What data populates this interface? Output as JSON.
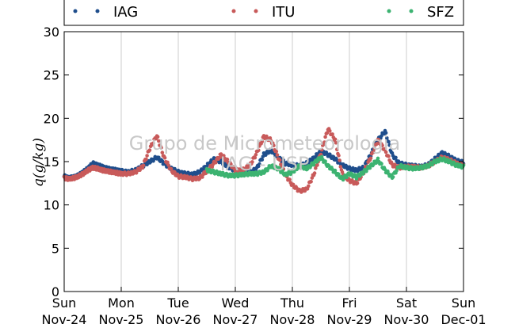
{
  "chart_data": {
    "type": "scatter",
    "ylabel": "q(g/kg)",
    "ylim": [
      0,
      30
    ],
    "yticks": [
      0,
      5,
      10,
      15,
      20,
      25,
      30
    ],
    "xlim": [
      "2013-11-24",
      "2013-12-01"
    ],
    "xticks": [
      {
        "day": "Sun",
        "date": "Nov-24"
      },
      {
        "day": "Mon",
        "date": "Nov-25"
      },
      {
        "day": "Tue",
        "date": "Nov-26"
      },
      {
        "day": "Wed",
        "date": "Nov-27"
      },
      {
        "day": "Thu",
        "date": "Nov-28"
      },
      {
        "day": "Fri",
        "date": "Nov-29"
      },
      {
        "day": "Sat",
        "date": "Nov-30"
      },
      {
        "day": "Sun",
        "date": "Dec-01"
      }
    ],
    "grid": "vertical",
    "legend": "top",
    "watermark": [
      "Grupo de Micrometeorologia",
      "IAG - USP"
    ],
    "series": [
      {
        "name": "IAG",
        "color": "#1f4e8c",
        "x": [
          "11-24 00:00",
          "11-24 02:00",
          "11-24 04:00",
          "11-24 06:00",
          "11-24 08:00",
          "11-24 10:00",
          "11-24 12:00",
          "11-24 14:00",
          "11-24 16:00",
          "11-24 18:00",
          "11-24 20:00",
          "11-24 22:00",
          "11-25 00:00",
          "11-25 03:00",
          "11-25 06:00",
          "11-25 09:00",
          "11-25 12:00",
          "11-25 15:00",
          "11-25 18:00",
          "11-25 21:00",
          "11-26 00:00",
          "11-26 03:00",
          "11-26 06:00",
          "11-26 09:00",
          "11-26 12:00",
          "11-26 15:00",
          "11-26 18:00",
          "11-26 21:00",
          "11-27 00:00",
          "11-27 03:00",
          "11-27 06:00",
          "11-27 09:00",
          "11-27 12:00",
          "11-27 15:00",
          "11-27 18:00",
          "11-27 21:00",
          "11-28 00:00",
          "11-28 03:00",
          "11-28 06:00",
          "11-28 09:00",
          "11-28 12:00",
          "11-28 15:00",
          "11-28 18:00",
          "11-28 21:00",
          "11-29 00:00",
          "11-29 03:00",
          "11-29 06:00",
          "11-29 09:00",
          "11-29 12:00",
          "11-29 15:00",
          "11-29 18:00",
          "11-29 21:00",
          "11-30 00:00",
          "11-30 03:00",
          "11-30 06:00",
          "11-30 09:00",
          "11-30 12:00",
          "11-30 15:00",
          "11-30 18:00",
          "11-30 21:00",
          "12-01 00:00"
        ],
        "y": [
          13.3,
          13.1,
          13.2,
          13.4,
          13.8,
          14.2,
          14.8,
          14.6,
          14.4,
          14.2,
          14.1,
          14.0,
          13.9,
          13.8,
          14.0,
          14.5,
          15.0,
          15.5,
          14.8,
          14.2,
          13.8,
          13.6,
          13.5,
          13.8,
          14.5,
          15.3,
          15.0,
          14.4,
          14.0,
          13.8,
          13.7,
          14.2,
          15.8,
          16.3,
          15.5,
          14.8,
          14.6,
          14.5,
          14.8,
          15.4,
          16.2,
          15.8,
          15.3,
          14.6,
          14.2,
          14.0,
          14.3,
          15.8,
          17.5,
          18.5,
          15.8,
          14.8,
          14.6,
          14.5,
          14.4,
          14.6,
          15.3,
          16.0,
          15.6,
          15.1,
          14.9
        ]
      },
      {
        "name": "ITU",
        "color": "#c85a5a",
        "x": [
          "11-24 00:00",
          "11-24 02:00",
          "11-24 04:00",
          "11-24 06:00",
          "11-24 08:00",
          "11-24 10:00",
          "11-24 12:00",
          "11-24 14:00",
          "11-24 16:00",
          "11-24 18:00",
          "11-24 20:00",
          "11-24 22:00",
          "11-25 00:00",
          "11-25 03:00",
          "11-25 06:00",
          "11-25 09:00",
          "11-25 12:00",
          "11-25 15:00",
          "11-25 18:00",
          "11-25 21:00",
          "11-26 00:00",
          "11-26 03:00",
          "11-26 06:00",
          "11-26 09:00",
          "11-26 12:00",
          "11-26 15:00",
          "11-26 18:00",
          "11-26 21:00",
          "11-27 00:00",
          "11-27 03:00",
          "11-27 06:00",
          "11-27 09:00",
          "11-27 12:00",
          "11-27 15:00",
          "11-27 18:00",
          "11-27 21:00",
          "11-28 00:00",
          "11-28 03:00",
          "11-28 06:00",
          "11-28 09:00",
          "11-28 12:00",
          "11-28 15:00",
          "11-28 18:00",
          "11-28 21:00",
          "11-29 00:00",
          "11-29 03:00",
          "11-29 06:00",
          "11-29 09:00",
          "11-29 12:00",
          "11-29 15:00",
          "11-29 18:00",
          "11-29 21:00",
          "11-30 00:00",
          "11-30 03:00",
          "11-30 06:00",
          "11-30 09:00",
          "11-30 12:00",
          "11-30 15:00",
          "11-30 18:00",
          "11-30 21:00",
          "12-01 00:00"
        ],
        "y": [
          13.1,
          13.0,
          13.1,
          13.3,
          13.6,
          14.0,
          14.3,
          14.2,
          14.0,
          13.9,
          13.8,
          13.7,
          13.6,
          13.6,
          13.8,
          14.4,
          16.5,
          18.0,
          15.5,
          14.0,
          13.3,
          13.2,
          13.0,
          13.1,
          13.9,
          14.8,
          15.8,
          15.0,
          14.0,
          14.0,
          14.5,
          16.0,
          17.9,
          17.5,
          15.5,
          13.5,
          12.3,
          11.6,
          11.8,
          13.5,
          16.0,
          18.8,
          17.5,
          13.6,
          12.8,
          12.5,
          13.8,
          15.5,
          17.5,
          16.3,
          14.6,
          14.3,
          14.4,
          14.4,
          14.3,
          14.5,
          15.0,
          15.5,
          15.2,
          14.8,
          14.6
        ]
      },
      {
        "name": "SFZ",
        "color": "#3cb371",
        "x": [
          "11-26 12:00",
          "11-26 15:00",
          "11-26 18:00",
          "11-26 21:00",
          "11-27 00:00",
          "11-27 03:00",
          "11-27 06:00",
          "11-27 09:00",
          "11-27 12:00",
          "11-27 15:00",
          "11-27 18:00",
          "11-27 21:00",
          "11-28 00:00",
          "11-28 03:00",
          "11-28 06:00",
          "11-28 09:00",
          "11-28 12:00",
          "11-28 15:00",
          "11-28 18:00",
          "11-28 21:00",
          "11-29 00:00",
          "11-29 03:00",
          "11-29 06:00",
          "11-29 09:00",
          "11-29 12:00",
          "11-29 15:00",
          "11-29 18:00",
          "11-29 21:00",
          "11-30 00:00",
          "11-30 03:00",
          "11-30 06:00",
          "11-30 09:00",
          "11-30 12:00",
          "11-30 15:00",
          "11-30 18:00",
          "11-30 21:00",
          "12-01 00:00"
        ],
        "y": [
          14.0,
          13.8,
          13.6,
          13.4,
          13.4,
          13.5,
          13.6,
          13.6,
          13.8,
          14.5,
          14.2,
          13.5,
          13.8,
          14.5,
          14.2,
          14.8,
          15.5,
          14.5,
          13.8,
          13.0,
          13.6,
          13.2,
          13.8,
          14.5,
          15.2,
          14.0,
          13.2,
          14.5,
          14.3,
          14.2,
          14.3,
          14.5,
          15.0,
          15.3,
          15.0,
          14.6,
          14.4
        ]
      }
    ]
  }
}
